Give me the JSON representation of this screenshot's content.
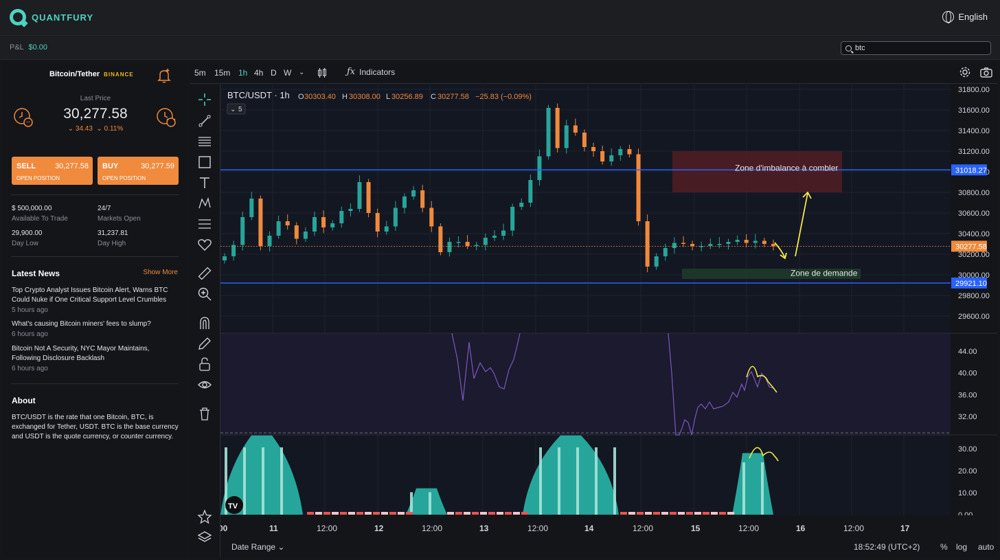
{
  "app": {
    "brand": "QUANTFURY",
    "language": "English"
  },
  "subbar": {
    "pnl_label": "P&L",
    "pnl_value": "$0.00",
    "search_value": "btc"
  },
  "instrument": {
    "pair": "Bitcoin/Tether",
    "exchange": "BINANCE",
    "last_price_label": "Last Price",
    "last_price": "30,277.58",
    "change_abs": "34.43",
    "change_pct": "0.11%"
  },
  "trade": {
    "sell_label": "SELL",
    "sell_price": "30,277.58",
    "sell_sub": "OPEN POSITION",
    "buy_label": "BUY",
    "buy_price": "30,277.59",
    "buy_sub": "OPEN POSITION"
  },
  "stats": {
    "available": "$ 500,000.00",
    "available_label": "Available To Trade",
    "markets": "24/7",
    "markets_label": "Markets Open",
    "low": "29,900.00",
    "low_label": "Day Low",
    "high": "31,237.81",
    "high_label": "Day High"
  },
  "news": {
    "header": "Latest News",
    "show_more": "Show More",
    "items": [
      {
        "title": "Top Crypto Analyst Issues Bitcoin Alert, Warns BTC Could Nuke if One Critical Support Level Crumbles",
        "ago": "5 hours ago"
      },
      {
        "title": "What's causing Bitcoin miners' fees to slump?",
        "ago": "6 hours ago"
      },
      {
        "title": "Bitcoin Not A Security, NYC Mayor Maintains, Following Disclosure Backlash",
        "ago": "6 hours ago"
      }
    ]
  },
  "about": {
    "header": "About",
    "text": "BTC/USDT is the rate that one Bitcoin, BTC, is exchanged for Tether, USDT. BTC is the base currency and USDT is the quote currency, or counter currency."
  },
  "toolbar": {
    "timeframes": [
      "5m",
      "15m",
      "1h",
      "4h",
      "D",
      "W"
    ],
    "active_timeframe": "1h",
    "indicators_label": "Indicators"
  },
  "chart_header": {
    "symbol": "BTC/USDT · 1h",
    "o_label": "O",
    "o": "30303.40",
    "h_label": "H",
    "h": "30308.00",
    "l_label": "L",
    "l": "30256.89",
    "c_label": "C",
    "c": "30277.58",
    "change": "−25.83 (−0.09%)",
    "collapse_count": "5"
  },
  "annotations": {
    "imbalance_zone": "Zone d'imbalance à combler",
    "demand_zone": "Zone de demande"
  },
  "bottom": {
    "date_range": "Date Range",
    "clock": "18:52:49 (UTC+2)",
    "pct": "%",
    "log": "log",
    "auto": "auto"
  },
  "colors": {
    "up": "#26a69a",
    "down": "#f08a3c",
    "accent": "#4dd3c0",
    "level_line": "#2962ff",
    "rsi": "#7e57c2"
  },
  "chart_data": {
    "type": "candlestick",
    "title": "BTC/USDT · 1h",
    "x_tick_labels": [
      "00",
      "11",
      "12:00",
      "12",
      "12:00",
      "13",
      "12:00",
      "14",
      "12:00",
      "15",
      "12:00",
      "16",
      "12:00",
      "17"
    ],
    "price_axis": {
      "tick_labels": [
        "31800.00",
        "31600.00",
        "31400.00",
        "31200.00",
        "31000.00",
        "30800.00",
        "30600.00",
        "30400.00",
        "30200.00",
        "30000.00",
        "29800.00",
        "29600.00"
      ],
      "ylim": [
        29500,
        31850
      ],
      "horizontal_levels": [
        31018.27,
        29921.1
      ],
      "last_price": 30277.58,
      "level_labels": [
        "31018.27",
        "29921.10"
      ],
      "last_price_label": "30277.58"
    },
    "zones": {
      "imbalance": {
        "from_price": 30800,
        "to_price": 31200
      },
      "demand": {
        "from_price": 29960,
        "to_price": 30060
      }
    },
    "close_series": [
      30180,
      30290,
      30560,
      30740,
      30280,
      30380,
      30520,
      30480,
      30350,
      30420,
      30560,
      30460,
      30500,
      30620,
      30640,
      30900,
      30600,
      30420,
      30470,
      30650,
      30760,
      30820,
      30650,
      30470,
      30220,
      30320,
      30320,
      30280,
      30290,
      30360,
      30380,
      30430,
      30660,
      30700,
      30920,
      31150,
      31620,
      31230,
      31450,
      31380,
      31240,
      31200,
      31100,
      31160,
      31220,
      31170,
      30520,
      30080,
      30180,
      30260,
      30310,
      30300,
      30280,
      30280,
      30300,
      30300,
      30320,
      30340,
      30310,
      30330,
      30300,
      30277.58
    ],
    "rsi": {
      "tick_labels": [
        "44.00",
        "40.00",
        "36.00",
        "32.00"
      ],
      "ylim": [
        29,
        47
      ]
    },
    "oscillator": {
      "tick_labels": [
        "30.00",
        "20.00",
        "10.00",
        "0.00"
      ],
      "ylim": [
        0,
        35
      ]
    }
  }
}
